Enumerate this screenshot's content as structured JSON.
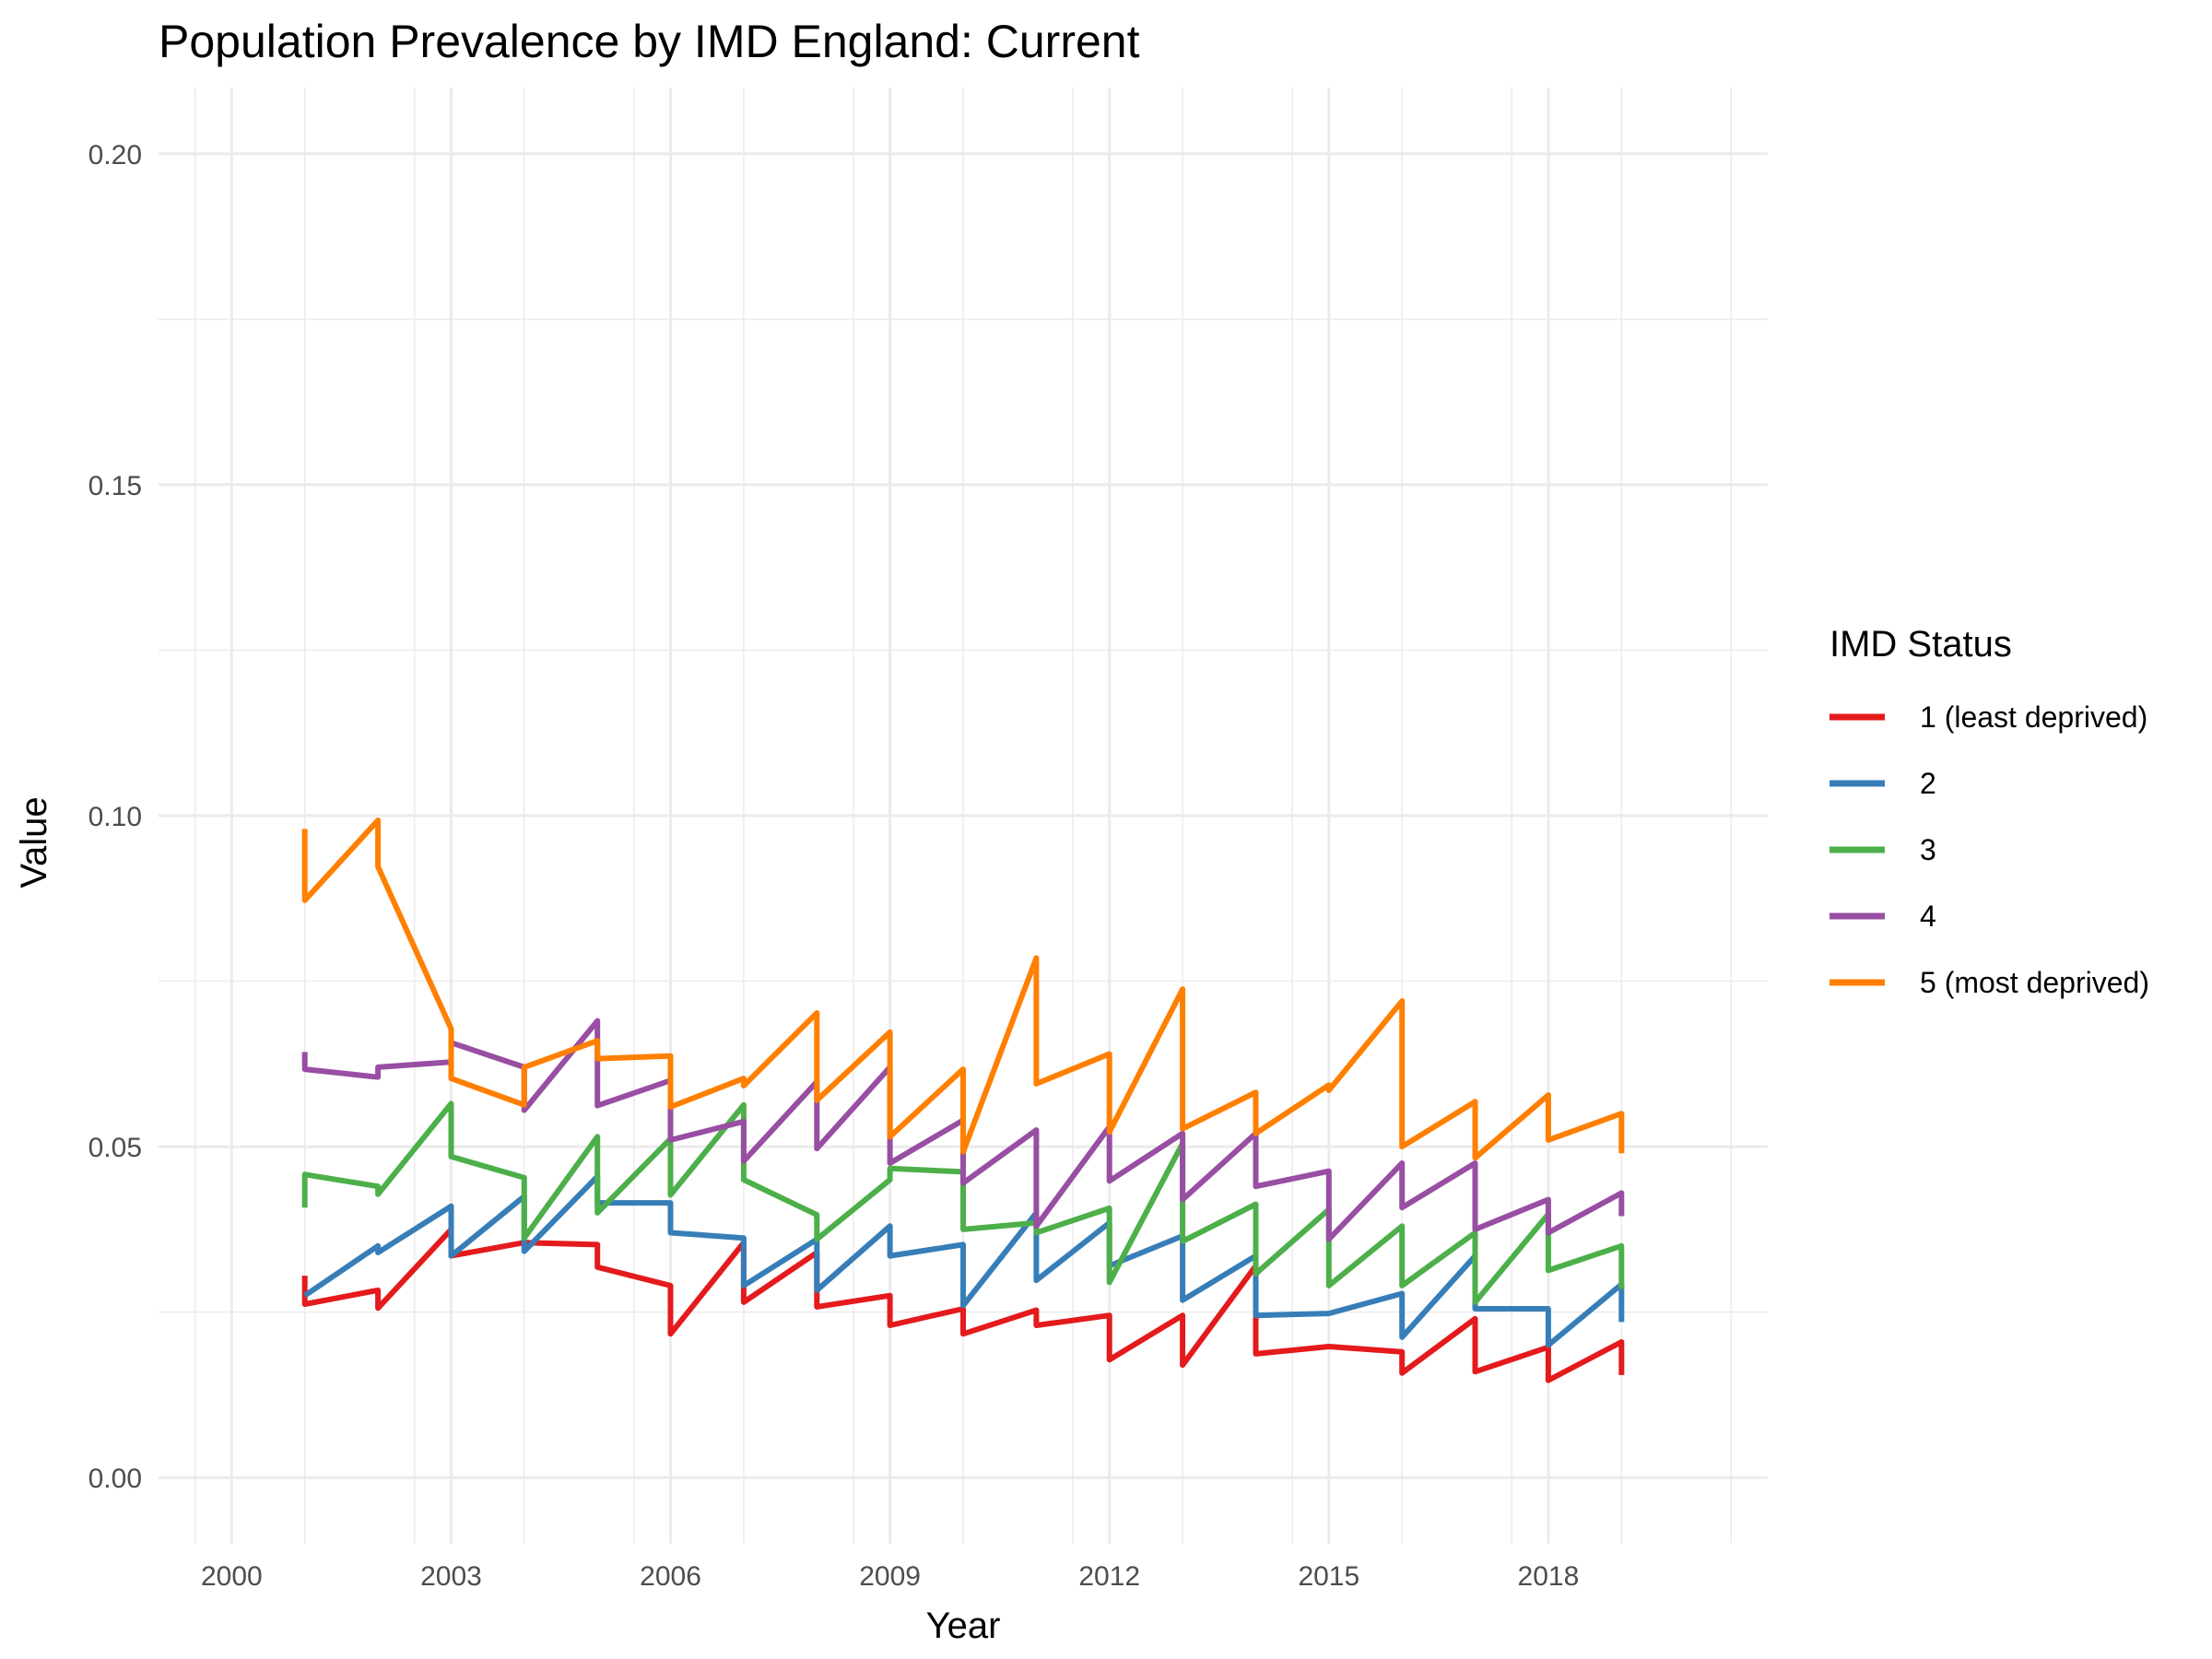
{
  "chart_data": {
    "type": "line",
    "title": "Population Prevalence by IMD England: Current",
    "xlabel": "Year",
    "ylabel": "Value",
    "xlim": [
      1999.0,
      2021.0
    ],
    "ylim": [
      -0.01,
      0.21
    ],
    "x_ticks": [
      2000,
      2003,
      2006,
      2009,
      2012,
      2015,
      2018
    ],
    "y_ticks": [
      0.0,
      0.05,
      0.1,
      0.15,
      0.2
    ],
    "y_tick_labels": [
      "0.00",
      "0.05",
      "0.10",
      "0.15",
      "0.20"
    ],
    "x_tick_labels": [
      "2000",
      "2003",
      "2006",
      "2009",
      "2012",
      "2015",
      "2018"
    ],
    "grid": true,
    "legend": {
      "title": "IMD Status",
      "position": "right"
    },
    "series": [
      {
        "name": "1 (least deprived)",
        "color": "#E41A1C",
        "points": [
          [
            2001,
            0.0305
          ],
          [
            2001,
            0.0262
          ],
          [
            2002,
            0.0283
          ],
          [
            2002,
            0.0256
          ],
          [
            2003,
            0.0375
          ],
          [
            2003,
            0.0335
          ],
          [
            2004,
            0.0355
          ],
          [
            2005,
            0.0352
          ],
          [
            2005,
            0.0318
          ],
          [
            2006,
            0.029
          ],
          [
            2006,
            0.0217
          ],
          [
            2007,
            0.0355
          ],
          [
            2007,
            0.0265
          ],
          [
            2008,
            0.034
          ],
          [
            2008,
            0.0258
          ],
          [
            2009,
            0.0275
          ],
          [
            2009,
            0.023
          ],
          [
            2010,
            0.0255
          ],
          [
            2010,
            0.0217
          ],
          [
            2011,
            0.0253
          ],
          [
            2011,
            0.023
          ],
          [
            2012,
            0.0245
          ],
          [
            2012,
            0.0178
          ],
          [
            2013,
            0.0245
          ],
          [
            2013,
            0.017
          ],
          [
            2014,
            0.032
          ],
          [
            2014,
            0.0187
          ],
          [
            2015,
            0.0198
          ],
          [
            2016,
            0.019
          ],
          [
            2016,
            0.0158
          ],
          [
            2017,
            0.024
          ],
          [
            2017,
            0.016
          ],
          [
            2018,
            0.0197
          ],
          [
            2018,
            0.0147
          ],
          [
            2019,
            0.0205
          ],
          [
            2019,
            0.0155
          ]
        ]
      },
      {
        "name": "2",
        "color": "#377EB8",
        "points": [
          [
            2001,
            0.0275
          ],
          [
            2002,
            0.035
          ],
          [
            2002,
            0.034
          ],
          [
            2003,
            0.041
          ],
          [
            2003,
            0.0335
          ],
          [
            2004,
            0.0425
          ],
          [
            2004,
            0.0342
          ],
          [
            2005,
            0.0455
          ],
          [
            2005,
            0.0415
          ],
          [
            2006,
            0.0415
          ],
          [
            2006,
            0.037
          ],
          [
            2007,
            0.0362
          ],
          [
            2007,
            0.029
          ],
          [
            2008,
            0.036
          ],
          [
            2008,
            0.0283
          ],
          [
            2009,
            0.038
          ],
          [
            2009,
            0.0335
          ],
          [
            2010,
            0.0352
          ],
          [
            2010,
            0.026
          ],
          [
            2011,
            0.04
          ],
          [
            2011,
            0.0298
          ],
          [
            2012,
            0.0385
          ],
          [
            2012,
            0.032
          ],
          [
            2013,
            0.0365
          ],
          [
            2013,
            0.0268
          ],
          [
            2014,
            0.0335
          ],
          [
            2014,
            0.0245
          ],
          [
            2015,
            0.0248
          ],
          [
            2016,
            0.0278
          ],
          [
            2016,
            0.0212
          ],
          [
            2017,
            0.0335
          ],
          [
            2017,
            0.0255
          ],
          [
            2018,
            0.0255
          ],
          [
            2018,
            0.02
          ],
          [
            2019,
            0.0292
          ],
          [
            2019,
            0.0235
          ]
        ]
      },
      {
        "name": "3",
        "color": "#4DAF4A",
        "points": [
          [
            2001,
            0.0408
          ],
          [
            2001,
            0.0458
          ],
          [
            2002,
            0.044
          ],
          [
            2002,
            0.0428
          ],
          [
            2003,
            0.0565
          ],
          [
            2003,
            0.0485
          ],
          [
            2004,
            0.0453
          ],
          [
            2004,
            0.0362
          ],
          [
            2005,
            0.0515
          ],
          [
            2005,
            0.04
          ],
          [
            2006,
            0.0512
          ],
          [
            2006,
            0.0427
          ],
          [
            2007,
            0.0563
          ],
          [
            2007,
            0.045
          ],
          [
            2008,
            0.0397
          ],
          [
            2008,
            0.036
          ],
          [
            2009,
            0.045
          ],
          [
            2009,
            0.0467
          ],
          [
            2010,
            0.0462
          ],
          [
            2010,
            0.0375
          ],
          [
            2011,
            0.0385
          ],
          [
            2011,
            0.037
          ],
          [
            2012,
            0.0407
          ],
          [
            2012,
            0.0295
          ],
          [
            2013,
            0.0505
          ],
          [
            2013,
            0.0357
          ],
          [
            2014,
            0.0413
          ],
          [
            2014,
            0.0308
          ],
          [
            2015,
            0.0405
          ],
          [
            2015,
            0.029
          ],
          [
            2016,
            0.038
          ],
          [
            2016,
            0.029
          ],
          [
            2017,
            0.037
          ],
          [
            2017,
            0.0265
          ],
          [
            2018,
            0.0398
          ],
          [
            2018,
            0.0313
          ],
          [
            2019,
            0.035
          ],
          [
            2019,
            0.0285
          ]
        ]
      },
      {
        "name": "4",
        "color": "#984EA3",
        "points": [
          [
            2001,
            0.0643
          ],
          [
            2001,
            0.0617
          ],
          [
            2002,
            0.0605
          ],
          [
            2002,
            0.062
          ],
          [
            2003,
            0.0628
          ],
          [
            2003,
            0.0657
          ],
          [
            2004,
            0.062
          ],
          [
            2004,
            0.0555
          ],
          [
            2005,
            0.069
          ],
          [
            2005,
            0.0562
          ],
          [
            2006,
            0.06
          ],
          [
            2006,
            0.051
          ],
          [
            2007,
            0.0538
          ],
          [
            2007,
            0.0478
          ],
          [
            2008,
            0.0598
          ],
          [
            2008,
            0.0497
          ],
          [
            2009,
            0.062
          ],
          [
            2009,
            0.0475
          ],
          [
            2010,
            0.054
          ],
          [
            2010,
            0.0445
          ],
          [
            2011,
            0.0525
          ],
          [
            2011,
            0.038
          ],
          [
            2012,
            0.053
          ],
          [
            2012,
            0.0448
          ],
          [
            2013,
            0.052
          ],
          [
            2013,
            0.042
          ],
          [
            2014,
            0.052
          ],
          [
            2014,
            0.044
          ],
          [
            2015,
            0.0463
          ],
          [
            2015,
            0.036
          ],
          [
            2016,
            0.0475
          ],
          [
            2016,
            0.0408
          ],
          [
            2017,
            0.0475
          ],
          [
            2017,
            0.0375
          ],
          [
            2018,
            0.042
          ],
          [
            2018,
            0.037
          ],
          [
            2019,
            0.043
          ],
          [
            2019,
            0.0395
          ]
        ]
      },
      {
        "name": "5 (most deprived)",
        "color": "#FF7F00",
        "points": [
          [
            2001,
            0.098
          ],
          [
            2001,
            0.0872
          ],
          [
            2002,
            0.0993
          ],
          [
            2002,
            0.0923
          ],
          [
            2003,
            0.0678
          ],
          [
            2003,
            0.0603
          ],
          [
            2004,
            0.0563
          ],
          [
            2004,
            0.062
          ],
          [
            2005,
            0.066
          ],
          [
            2005,
            0.0633
          ],
          [
            2006,
            0.0637
          ],
          [
            2006,
            0.056
          ],
          [
            2007,
            0.0603
          ],
          [
            2007,
            0.0592
          ],
          [
            2008,
            0.0702
          ],
          [
            2008,
            0.057
          ],
          [
            2009,
            0.0673
          ],
          [
            2009,
            0.0515
          ],
          [
            2010,
            0.0617
          ],
          [
            2010,
            0.0492
          ],
          [
            2011,
            0.0785
          ],
          [
            2011,
            0.0595
          ],
          [
            2012,
            0.064
          ],
          [
            2012,
            0.0522
          ],
          [
            2013,
            0.0738
          ],
          [
            2013,
            0.0527
          ],
          [
            2014,
            0.0582
          ],
          [
            2014,
            0.052
          ],
          [
            2015,
            0.0593
          ],
          [
            2015,
            0.0585
          ],
          [
            2016,
            0.072
          ],
          [
            2016,
            0.05
          ],
          [
            2017,
            0.0568
          ],
          [
            2017,
            0.0483
          ],
          [
            2018,
            0.0578
          ],
          [
            2018,
            0.051
          ],
          [
            2019,
            0.055
          ],
          [
            2019,
            0.049
          ]
        ]
      }
    ]
  }
}
